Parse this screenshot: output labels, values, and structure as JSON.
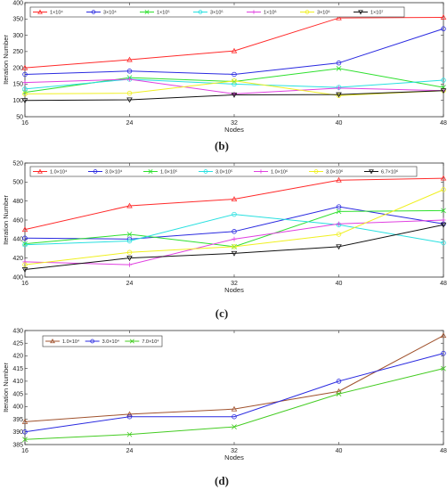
{
  "chart_data": [
    {
      "type": "line",
      "panel_label": "(b)",
      "xlabel": "Nodes",
      "ylabel": "Iteration Number",
      "x": [
        16,
        24,
        32,
        40,
        48
      ],
      "xlim": [
        16,
        48
      ],
      "ylim": [
        50,
        400
      ],
      "yticks": [
        50,
        100,
        150,
        200,
        250,
        300,
        350,
        400
      ],
      "legend_placement": "top",
      "series": [
        {
          "name": "1×10⁴",
          "color": "#ff2a2a",
          "marker": "triangle",
          "values": [
            200,
            225,
            252,
            353,
            355
          ]
        },
        {
          "name": "3×10⁴",
          "color": "#2a2ae0",
          "marker": "circle",
          "values": [
            180,
            190,
            180,
            215,
            320
          ]
        },
        {
          "name": "1×10⁵",
          "color": "#2ee02e",
          "marker": "x",
          "values": [
            125,
            170,
            158,
            198,
            140
          ]
        },
        {
          "name": "3×10⁵",
          "color": "#28e0e0",
          "marker": "circle",
          "values": [
            135,
            165,
            150,
            140,
            162
          ]
        },
        {
          "name": "1×10⁶",
          "color": "#e040e0",
          "marker": "plus",
          "values": [
            155,
            165,
            120,
            138,
            130
          ]
        },
        {
          "name": "3×10⁶",
          "color": "#f0f020",
          "marker": "circle",
          "values": [
            120,
            122,
            160,
            115,
            130
          ]
        },
        {
          "name": "1×10⁷",
          "color": "#111111",
          "marker": "triangle-down",
          "values": [
            100,
            102,
            117,
            118,
            130
          ]
        }
      ]
    },
    {
      "type": "line",
      "panel_label": "(c)",
      "xlabel": "Nodes",
      "ylabel": "Iteration Number",
      "x": [
        16,
        24,
        32,
        40,
        48
      ],
      "xlim": [
        16,
        48
      ],
      "ylim": [
        400,
        520
      ],
      "yticks": [
        400,
        420,
        440,
        460,
        480,
        500,
        520
      ],
      "legend_placement": "top",
      "series": [
        {
          "name": "1.0×10⁴",
          "color": "#ff2a2a",
          "marker": "triangle",
          "values": [
            450,
            475,
            482,
            502,
            504
          ]
        },
        {
          "name": "3.0×10⁴",
          "color": "#2a2ae0",
          "marker": "circle",
          "values": [
            441,
            440,
            448,
            474,
            456
          ]
        },
        {
          "name": "1.0×10⁵",
          "color": "#2ee02e",
          "marker": "x",
          "values": [
            435,
            445,
            432,
            469,
            470
          ]
        },
        {
          "name": "3.0×10⁵",
          "color": "#28e0e0",
          "marker": "circle",
          "values": [
            434,
            438,
            466,
            455,
            436
          ]
        },
        {
          "name": "1.0×10⁶",
          "color": "#e040e0",
          "marker": "plus",
          "values": [
            416,
            413,
            440,
            456,
            460
          ]
        },
        {
          "name": "3.0×10⁶",
          "color": "#f0f020",
          "marker": "circle",
          "values": [
            413,
            426,
            432,
            445,
            492
          ]
        },
        {
          "name": "6.7×10⁶",
          "color": "#111111",
          "marker": "triangle-down",
          "values": [
            408,
            420,
            425,
            432,
            455
          ]
        }
      ]
    },
    {
      "type": "line",
      "panel_label": "(d)",
      "xlabel": "Nodes",
      "ylabel": "Iteration Number",
      "x": [
        16,
        24,
        32,
        40,
        48
      ],
      "xlim": [
        16,
        48
      ],
      "ylim": [
        385,
        430
      ],
      "yticks": [
        385,
        390,
        395,
        400,
        405,
        410,
        415,
        420,
        425,
        430
      ],
      "legend_placement": "top-left",
      "series": [
        {
          "name": "1.0×10⁴",
          "color": "#a0522d",
          "marker": "triangle",
          "values": [
            394,
            397,
            399,
            406,
            428
          ]
        },
        {
          "name": "3.0×10⁴",
          "color": "#2a2ae0",
          "marker": "circle",
          "values": [
            390,
            396,
            396,
            410,
            421
          ]
        },
        {
          "name": "7.0×10⁴",
          "color": "#44cc22",
          "marker": "x",
          "values": [
            387,
            389,
            392,
            405,
            415
          ]
        }
      ]
    }
  ]
}
